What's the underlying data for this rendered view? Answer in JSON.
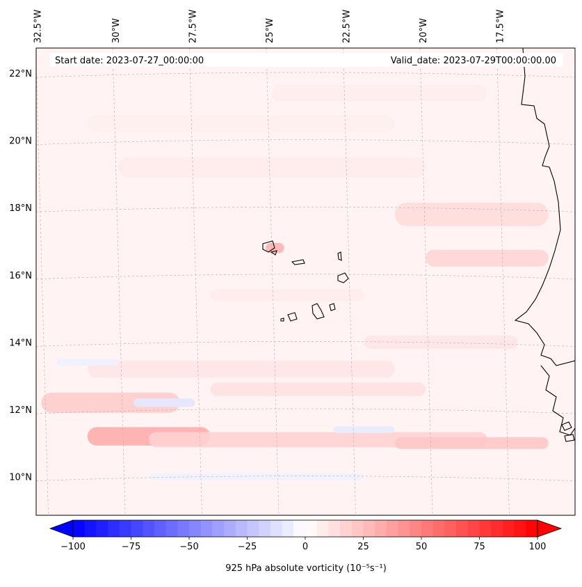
{
  "map": {
    "header_left": "Start date: 2023-07-27_00:00:00",
    "header_right": "Valid_date: 2023-07-29T00:00:00.00",
    "lon_labels": [
      {
        "label": "32.5°W",
        "lon": -32.5
      },
      {
        "label": "30°W",
        "lon": -30.0
      },
      {
        "label": "27.5°W",
        "lon": -27.5
      },
      {
        "label": "25°W",
        "lon": -25.0
      },
      {
        "label": "22.5°W",
        "lon": -22.5
      },
      {
        "label": "20°W",
        "lon": -20.0
      },
      {
        "label": "17.5°W",
        "lon": -17.5
      }
    ],
    "lat_labels": [
      {
        "label": "22°N",
        "lat": 22
      },
      {
        "label": "20°N",
        "lat": 20
      },
      {
        "label": "18°N",
        "lat": 18
      },
      {
        "label": "16°N",
        "lat": 16
      },
      {
        "label": "14°N",
        "lat": 14
      },
      {
        "label": "12°N",
        "lat": 12
      },
      {
        "label": "10°N",
        "lat": 10
      }
    ],
    "colors": {
      "coastline": "#000000",
      "gridline": "#b0b0b0",
      "low": "#0000ff",
      "zero": "#ffffff",
      "high": "#ff0000"
    },
    "colorbar": {
      "label": "925 hPa absolute vorticity (10⁻⁵s⁻¹)",
      "vmin": -100,
      "vmax": 100,
      "ticks": [
        {
          "label": "−100",
          "value": -100
        },
        {
          "label": "−75",
          "value": -75
        },
        {
          "label": "−50",
          "value": -50
        },
        {
          "label": "−25",
          "value": -25
        },
        {
          "label": "0",
          "value": 0
        },
        {
          "label": "25",
          "value": 25
        },
        {
          "label": "50",
          "value": 50
        },
        {
          "label": "75",
          "value": 75
        },
        {
          "label": "100",
          "value": 100
        }
      ],
      "levels": 40
    }
  }
}
